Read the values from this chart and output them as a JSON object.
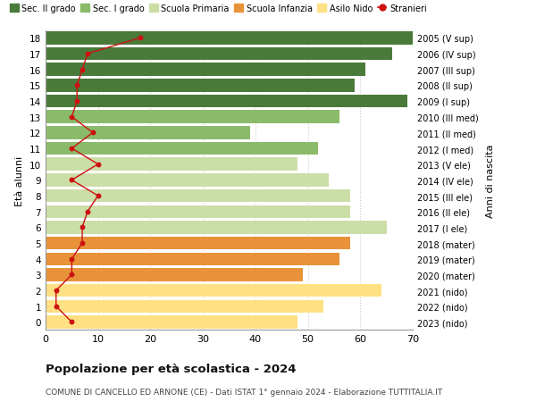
{
  "title": "Popolazione per età scolastica - 2024",
  "subtitle": "COMUNE DI CANCELLO ED ARNONE (CE) - Dati ISTAT 1° gennaio 2024 - Elaborazione TUTTITALIA.IT",
  "ylabel_left": "Età alunni",
  "ylabel_right": "Anni di nascita",
  "ages": [
    0,
    1,
    2,
    3,
    4,
    5,
    6,
    7,
    8,
    9,
    10,
    11,
    12,
    13,
    14,
    15,
    16,
    17,
    18
  ],
  "years": [
    "2023 (nido)",
    "2022 (nido)",
    "2021 (nido)",
    "2020 (mater)",
    "2019 (mater)",
    "2018 (mater)",
    "2017 (I ele)",
    "2016 (II ele)",
    "2015 (III ele)",
    "2014 (IV ele)",
    "2013 (V ele)",
    "2012 (I med)",
    "2011 (II med)",
    "2010 (III med)",
    "2009 (I sup)",
    "2008 (II sup)",
    "2007 (III sup)",
    "2006 (IV sup)",
    "2005 (V sup)"
  ],
  "bar_values": [
    48,
    53,
    64,
    49,
    56,
    58,
    65,
    58,
    58,
    54,
    48,
    52,
    39,
    56,
    69,
    59,
    61,
    66,
    70
  ],
  "bar_colors": [
    "#FFE083",
    "#FFE083",
    "#FFE083",
    "#E8933A",
    "#E8933A",
    "#E8933A",
    "#CCDEA8",
    "#CCDEA8",
    "#CCDEA8",
    "#CCDEA8",
    "#CCDEA8",
    "#8BBB6A",
    "#8BBB6A",
    "#8BBB6A",
    "#4A7A3A",
    "#4A7A3A",
    "#4A7A3A",
    "#4A7A3A",
    "#4A7A3A"
  ],
  "stranieri_values": [
    5,
    2,
    2,
    5,
    5,
    7,
    7,
    8,
    10,
    5,
    10,
    5,
    9,
    5,
    6,
    6,
    7,
    8,
    18
  ],
  "legend_labels": [
    "Sec. II grado",
    "Sec. I grado",
    "Scuola Primaria",
    "Scuola Infanzia",
    "Asilo Nido",
    "Stranieri"
  ],
  "legend_colors": [
    "#4A7A3A",
    "#8BBB6A",
    "#CCDEA8",
    "#E8933A",
    "#FFE083",
    "#CC1111"
  ],
  "stranieri_color": "#CC1111",
  "background_color": "#FFFFFF",
  "grid_color": "#CCCCCC",
  "xlim": [
    0,
    70
  ],
  "ylim": [
    -0.5,
    18.5
  ],
  "xticks": [
    0,
    10,
    20,
    30,
    40,
    50,
    60,
    70
  ]
}
